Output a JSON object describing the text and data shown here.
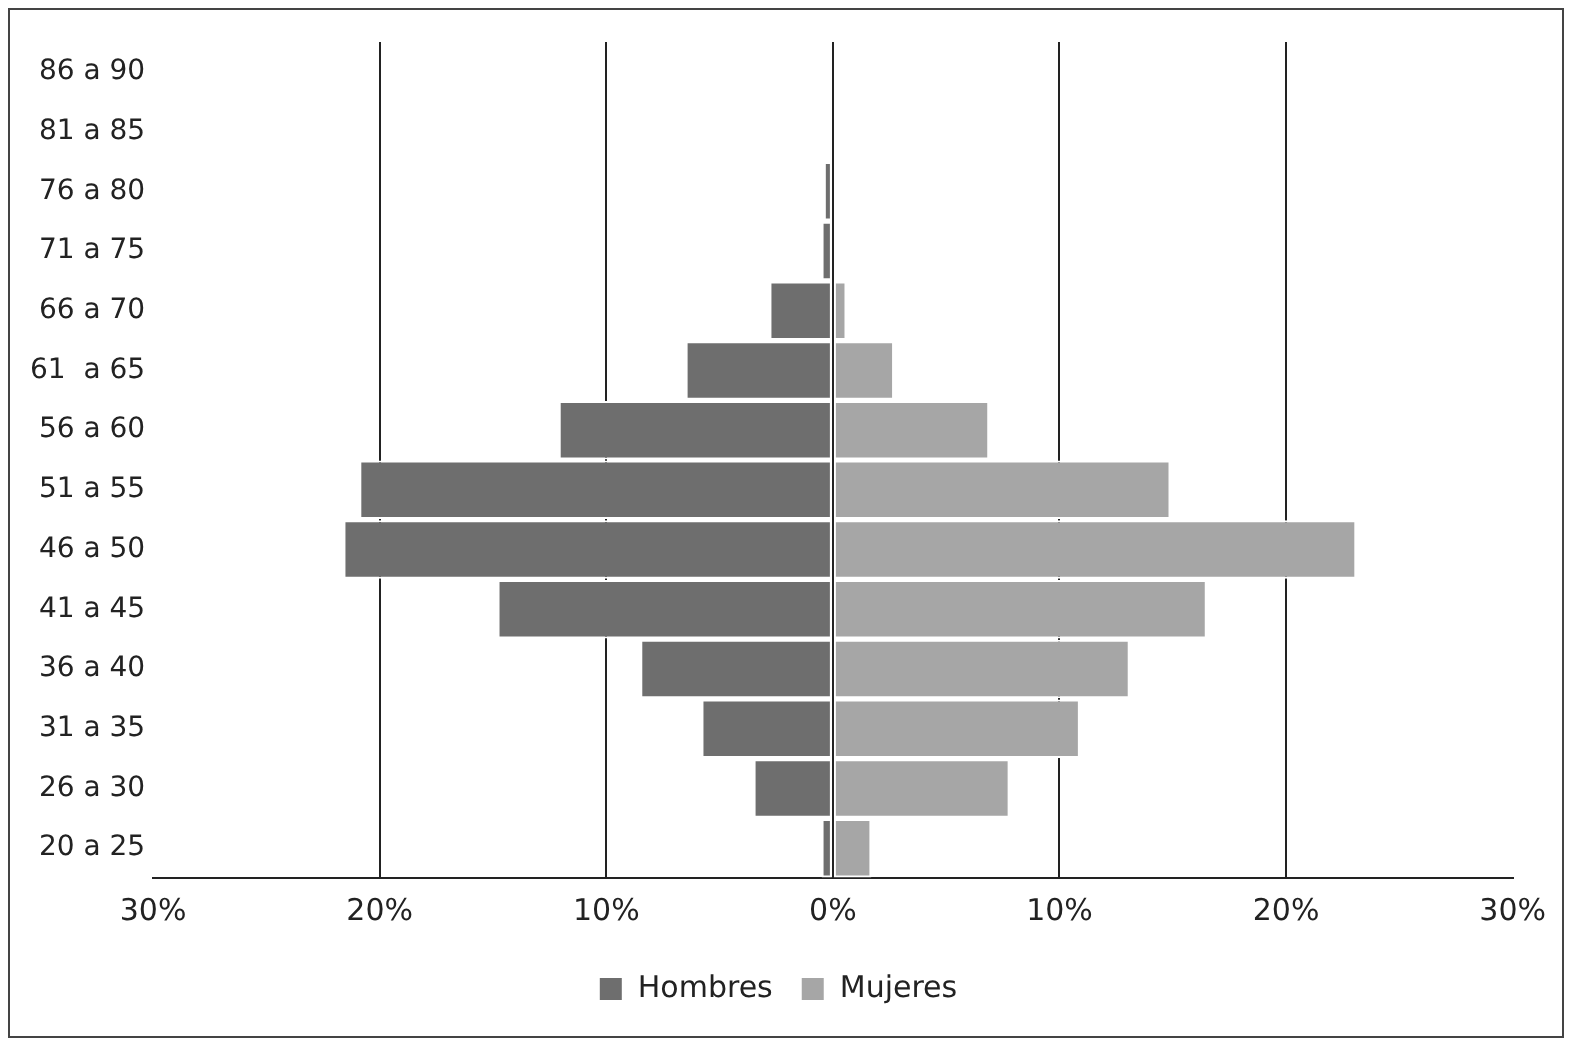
{
  "chart_data": {
    "type": "bar",
    "orientation": "horizontal",
    "stacked": true,
    "categories": [
      "86 a 90",
      "81 a 85",
      "76 a 80",
      "71 a 75",
      "66 a 70",
      "61  a 65",
      "56 a 60",
      "51 a 55",
      "46 a 50",
      "41 a 45",
      "36 a 40",
      "31 a 35",
      "26 a 30",
      "20 a 25"
    ],
    "series": [
      {
        "name": "Hombres",
        "color": "#6e6e6e",
        "values": [
          0,
          0,
          -0.4,
          -0.5,
          -2.8,
          -6.5,
          -12.1,
          -20.9,
          -21.6,
          -14.8,
          -8.5,
          -5.8,
          -3.5,
          -0.5
        ]
      },
      {
        "name": "Mujeres",
        "color": "#a6a6a6",
        "values": [
          0,
          0,
          0,
          0,
          0.6,
          2.7,
          6.9,
          14.9,
          23.1,
          16.5,
          13.1,
          10.9,
          7.8,
          1.7
        ]
      }
    ],
    "xlim": [
      -30,
      30
    ],
    "xticks": [
      {
        "value": -30,
        "label": "30%"
      },
      {
        "value": -20,
        "label": "20%"
      },
      {
        "value": -10,
        "label": "10%"
      },
      {
        "value": 0,
        "label": "0%"
      },
      {
        "value": 10,
        "label": "10%"
      },
      {
        "value": 20,
        "label": "20%"
      },
      {
        "value": 30,
        "label": "30%"
      }
    ],
    "grid": "x",
    "legend": "bottom"
  }
}
